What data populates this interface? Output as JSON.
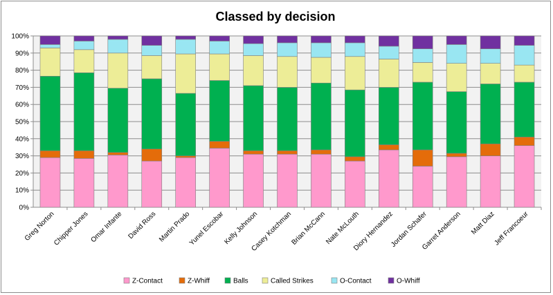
{
  "chart_data": {
    "type": "bar",
    "stacked": true,
    "percent": true,
    "title": "Classed by decision",
    "xlabel": "",
    "ylabel": "",
    "ylim": [
      0,
      1
    ],
    "yticks": [
      "0%",
      "10%",
      "20%",
      "30%",
      "40%",
      "50%",
      "60%",
      "70%",
      "80%",
      "90%",
      "100%"
    ],
    "grid": true,
    "legend_position": "bottom",
    "plot_background": "#f2f2f2",
    "categories": [
      "Greg Norton",
      "Chipper Jones",
      "Omar Infante",
      "David Ross",
      "Martin Prado",
      "Yunel Escobar",
      "Kelly Johnson",
      "Casey Kotchman",
      "Brian McCann",
      "Nate McLouth",
      "Diory Hernandez",
      "Jordan Schafer",
      "Garret Anderson",
      "Matt Diaz",
      "Jeff Francoeur"
    ],
    "series": [
      {
        "name": "Z-Contact",
        "color": "#ff99cc",
        "values": [
          0.29,
          0.285,
          0.305,
          0.27,
          0.29,
          0.345,
          0.31,
          0.31,
          0.31,
          0.27,
          0.335,
          0.24,
          0.295,
          0.3,
          0.36
        ]
      },
      {
        "name": "Z-Whiff",
        "color": "#e46c0a",
        "values": [
          0.04,
          0.045,
          0.015,
          0.07,
          0.01,
          0.04,
          0.02,
          0.02,
          0.025,
          0.025,
          0.03,
          0.095,
          0.02,
          0.07,
          0.05
        ]
      },
      {
        "name": "Balls",
        "color": "#00b050",
        "values": [
          0.435,
          0.455,
          0.375,
          0.41,
          0.365,
          0.355,
          0.38,
          0.37,
          0.39,
          0.39,
          0.335,
          0.395,
          0.36,
          0.35,
          0.32
        ]
      },
      {
        "name": "Called Strikes",
        "color": "#eded97",
        "values": [
          0.165,
          0.135,
          0.205,
          0.135,
          0.23,
          0.155,
          0.175,
          0.18,
          0.15,
          0.195,
          0.165,
          0.115,
          0.165,
          0.12,
          0.1
        ]
      },
      {
        "name": "O-Contact",
        "color": "#99e6f2",
        "values": [
          0.02,
          0.05,
          0.08,
          0.06,
          0.085,
          0.075,
          0.07,
          0.08,
          0.085,
          0.08,
          0.075,
          0.08,
          0.11,
          0.085,
          0.115
        ]
      },
      {
        "name": "O-Whiff",
        "color": "#7030a0",
        "values": [
          0.05,
          0.03,
          0.02,
          0.055,
          0.02,
          0.03,
          0.045,
          0.04,
          0.04,
          0.04,
          0.06,
          0.075,
          0.05,
          0.075,
          0.055
        ]
      }
    ]
  }
}
